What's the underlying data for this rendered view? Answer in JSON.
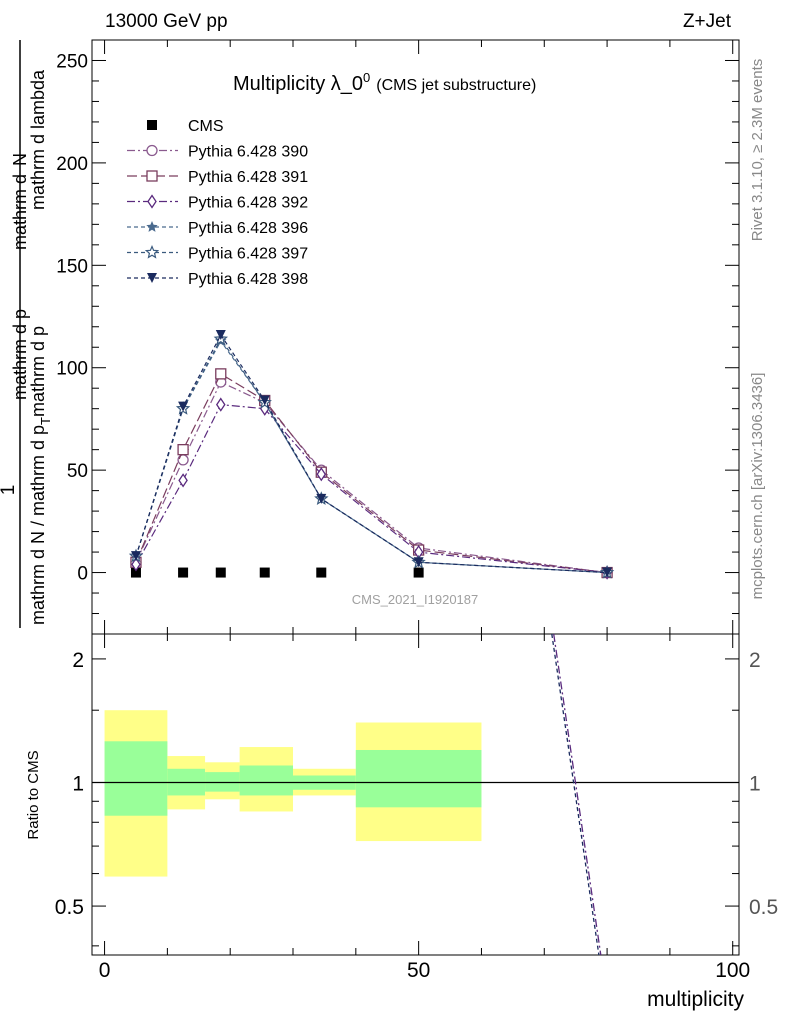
{
  "header": {
    "left": "13000 GeV pp",
    "right": "Z+Jet"
  },
  "side_labels": {
    "rivet": "Rivet 3.1.10, ≥ 2.3M events",
    "mcplots": "mcplots.cern.ch [arXiv:1306.3436]"
  },
  "colors": {
    "yellow_band": "#ffff88",
    "green_band": "#99ff99",
    "data": "#000000"
  },
  "chart_data": [
    {
      "type": "line",
      "title": "Multiplicity λ_0",
      "title_superscript": "0",
      "subtitle": "(CMS jet substructure)",
      "watermark": "CMS_2021_I1920187",
      "ylabel": {
        "frac_num": "1",
        "frac_den_part1": "mathrm d N / mathrm d p",
        "frac_den_part2": "mathrm d p",
        "frac_den_part3": "mathrm d lambda",
        "subscript": "T",
        "num_right": "mathrm d",
        "num_n": "N",
        "den_small": "mathrm d p"
      },
      "xlim": [
        -2,
        101
      ],
      "ylim": [
        -30,
        260
      ],
      "yticks": [
        0,
        50,
        100,
        150,
        200,
        250
      ],
      "ytick_labels": [
        "0",
        "50",
        "100",
        "150",
        "200",
        "250"
      ],
      "legend_position": "top-left",
      "x": [
        5,
        12.5,
        18.5,
        25.5,
        34.5,
        50,
        80
      ],
      "series": [
        {
          "name": "CMS",
          "color": "#000000",
          "marker": "square-filled",
          "dash": "none",
          "values": [
            0,
            0,
            0,
            0,
            0,
            0,
            0
          ]
        },
        {
          "name": "Pythia 6.428 390",
          "color": "#8a5a8e",
          "marker": "circle-open",
          "dash": "8,3,2,3",
          "values": [
            5,
            55,
            93,
            83,
            50,
            12,
            0
          ]
        },
        {
          "name": "Pythia 6.428 391",
          "color": "#7a3d5e",
          "marker": "square-open",
          "dash": "10,4",
          "values": [
            5,
            60,
            97,
            84,
            49,
            11,
            0
          ]
        },
        {
          "name": "Pythia 6.428 392",
          "color": "#5a2a7e",
          "marker": "diamond-open",
          "dash": "8,3,2,3",
          "values": [
            4,
            45,
            82,
            80,
            48,
            10,
            0
          ]
        },
        {
          "name": "Pythia 6.428 396",
          "color": "#4a6a8e",
          "marker": "star-filled",
          "dash": "4,3",
          "values": [
            8,
            80,
            113,
            83,
            36,
            5,
            0
          ]
        },
        {
          "name": "Pythia 6.428 397",
          "color": "#3a5a7e",
          "marker": "star-open",
          "dash": "4,3",
          "values": [
            8,
            80,
            114,
            83,
            36,
            5,
            0
          ]
        },
        {
          "name": "Pythia 6.428 398",
          "color": "#1a2a5e",
          "marker": "triangle-down-filled",
          "dash": "4,3",
          "values": [
            8,
            81,
            116,
            84,
            36,
            5,
            0
          ]
        }
      ]
    },
    {
      "type": "area",
      "ylabel": "Ratio to CMS",
      "xlabel": "multiplicity",
      "xlim": [
        -2,
        101
      ],
      "ylim": [
        0.38,
        2.3
      ],
      "yticks": [
        0.5,
        1,
        2
      ],
      "ytick_labels": [
        "0.5",
        "1",
        "2"
      ],
      "xticks": [
        0,
        50,
        100
      ],
      "xtick_labels": [
        "0",
        "50",
        "100"
      ],
      "reference_line": 1,
      "bins": [
        {
          "lo": 0,
          "hi": 10,
          "yellow": [
            0.59,
            1.5
          ],
          "green": [
            0.83,
            1.26
          ]
        },
        {
          "lo": 10,
          "hi": 16,
          "yellow": [
            0.86,
            1.16
          ],
          "green": [
            0.93,
            1.08
          ]
        },
        {
          "lo": 16,
          "hi": 21.5,
          "yellow": [
            0.91,
            1.12
          ],
          "green": [
            0.95,
            1.06
          ]
        },
        {
          "lo": 21.5,
          "hi": 30,
          "yellow": [
            0.85,
            1.22
          ],
          "green": [
            0.93,
            1.1
          ]
        },
        {
          "lo": 30,
          "hi": 40,
          "yellow": [
            0.93,
            1.08
          ],
          "green": [
            0.96,
            1.04
          ]
        },
        {
          "lo": 40,
          "hi": 60,
          "yellow": [
            0.72,
            1.4
          ],
          "green": [
            0.87,
            1.2
          ]
        }
      ],
      "ratio_lines": [
        {
          "color": "#5a2a7e",
          "dash": "8,3,2,3",
          "x": [
            71.5,
            79
          ],
          "values": [
            2.35,
            0.38
          ]
        },
        {
          "color": "#1a2a5e",
          "dash": "4,3",
          "x": [
            71.2,
            78.7
          ],
          "values": [
            2.35,
            0.38
          ]
        }
      ]
    }
  ]
}
